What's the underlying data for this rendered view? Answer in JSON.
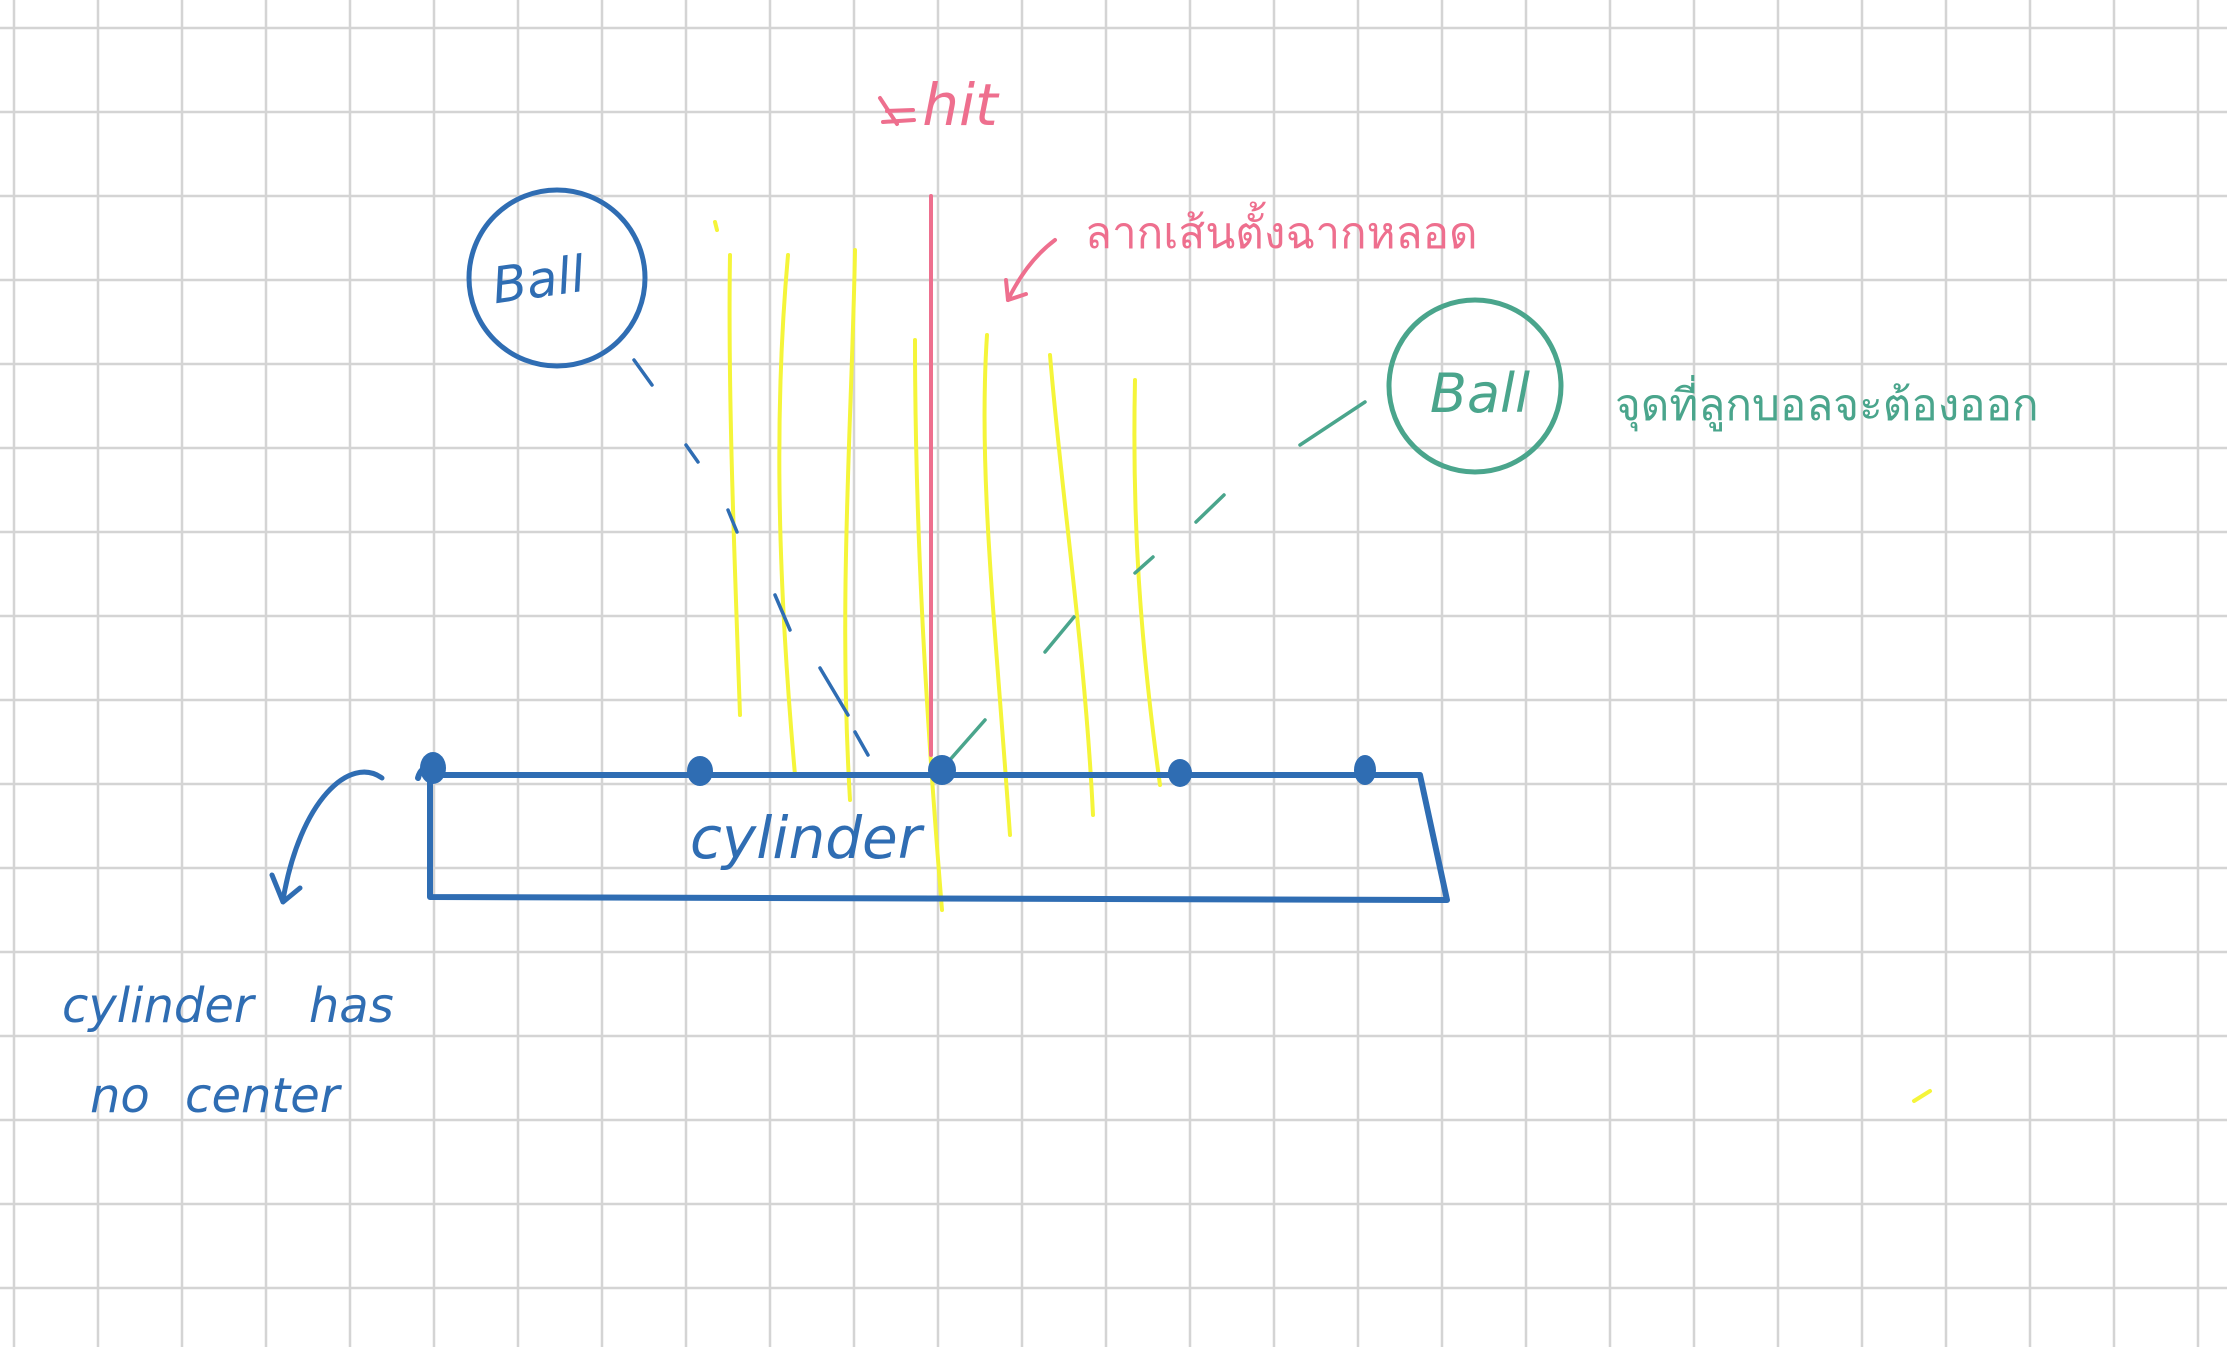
{
  "colors": {
    "grid": "#d4d4d4",
    "background": "#ffffff",
    "blue": "#2f6db3",
    "pink": "#ee6f8e",
    "teal": "#4aa58c",
    "yellow": "#f5f53a"
  },
  "labels": {
    "hit": "hit",
    "ball_left": "Ball",
    "ball_right": "Ball",
    "cylinder": "cylinder",
    "cylinder_note_line1": "cylinder has",
    "cylinder_note_line2": "no center",
    "thai_note_pink": "ลากเส้นตั้งฉากหลอด",
    "thai_note_teal": "จุดที่ลูกบอลจะต้องออก"
  }
}
